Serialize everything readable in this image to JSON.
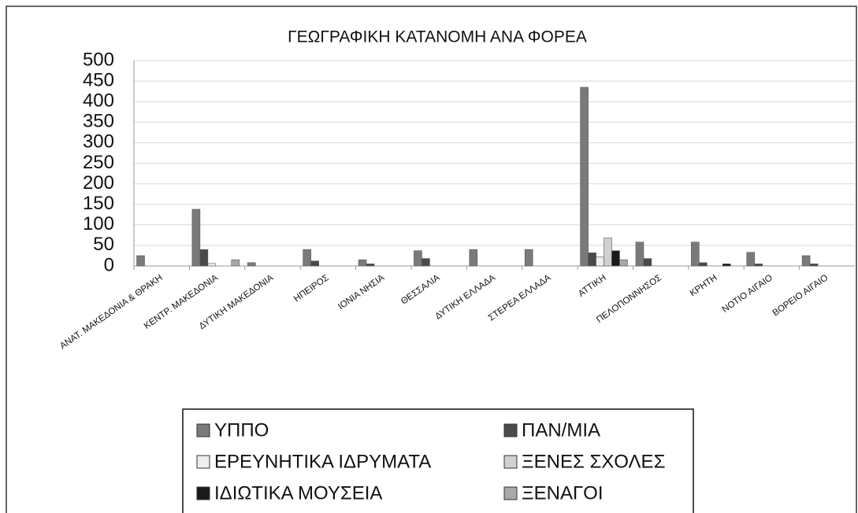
{
  "chart_data": {
    "type": "bar",
    "title": "ΓΕΩΓΡΑΦΙΚΗ ΚΑΤΑΝΟΜΗ ΑΝΑ ΦΟΡΕΑ",
    "categories": [
      "ΑΝΑΤ. ΜΑΚΕΔΟΝΙΑ & ΘΡΑΚΗ",
      "ΚΕΝΤΡ. ΜΑΚΕΔΟΝΙΑ",
      "ΔΥΤΙΚΗ ΜΑΚΕΔΟΝΙΑ",
      "ΗΠΕΙΡΟΣ",
      "ΙΟΝΙΑ ΝΗΣΙΑ",
      "ΘΕΣΣΑΛΙΑ",
      "ΔΥΤΙΚΗ ΕΛΛΑΔΑ",
      "ΣΤΕΡΕΑ ΕΛΛΑΔΑ",
      "ΑΤΤΙΚΗ",
      "ΠΕΛΟΠΟΝΝΗΣΟΣ",
      "ΚΡΗΤΗ",
      "ΝΟΤΙΟ ΑΙΓΑΙΟ",
      "ΒΟΡΕΙΟ ΑΙΓΑΙΟ"
    ],
    "series": [
      {
        "name": "ΥΠΠΟ",
        "color": "#7a7a7a",
        "values": [
          25,
          138,
          8,
          40,
          15,
          37,
          40,
          40,
          435,
          58,
          58,
          33,
          25
        ]
      },
      {
        "name": "ΠΑΝ/ΜΙΑ",
        "color": "#4a4a4a",
        "values": [
          0,
          40,
          0,
          12,
          5,
          18,
          0,
          0,
          32,
          18,
          8,
          5,
          5
        ]
      },
      {
        "name": "ΕΡΕΥΝΗΤΙΚΑ ΙΔΡΥΜΑΤΑ",
        "color": "#eeeeee",
        "values": [
          0,
          6,
          0,
          0,
          0,
          0,
          0,
          0,
          22,
          0,
          0,
          0,
          0
        ]
      },
      {
        "name": "ΞΕΝΕΣ ΣΧΟΛΕΣ",
        "color": "#d0d0d0",
        "values": [
          0,
          0,
          0,
          0,
          0,
          0,
          0,
          0,
          68,
          0,
          0,
          0,
          0
        ]
      },
      {
        "name": "ΙΔΙΩΤΙΚΑ ΜΟΥΣΕΙΑ",
        "color": "#1a1a1a",
        "values": [
          0,
          0,
          0,
          0,
          0,
          0,
          0,
          0,
          37,
          0,
          5,
          0,
          0
        ]
      },
      {
        "name": "ΞΕΝΑΓΟΙ",
        "color": "#a8a8a8",
        "values": [
          0,
          15,
          0,
          0,
          0,
          0,
          0,
          0,
          15,
          0,
          0,
          0,
          0
        ]
      }
    ],
    "ylim": [
      0,
      500
    ],
    "yticks": [
      0,
      50,
      100,
      150,
      200,
      250,
      300,
      350,
      400,
      450,
      500
    ],
    "grid": true
  }
}
